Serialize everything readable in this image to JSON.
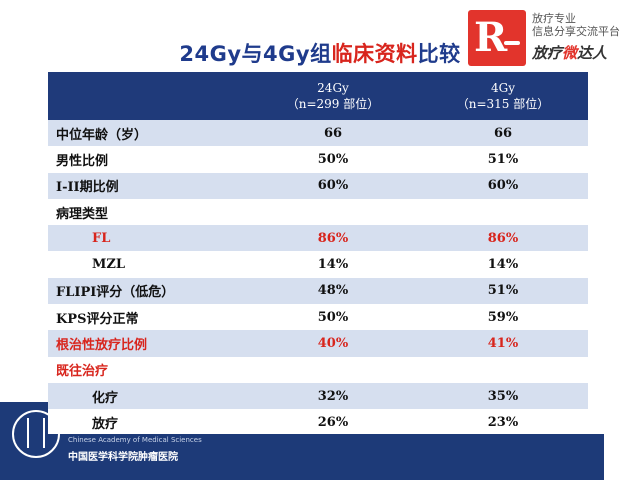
{
  "title": {
    "part1": "24Gy与4Gy组",
    "part2": "临床资料",
    "part3": "比较"
  },
  "logo": {
    "letter": "R",
    "tagline1": "放疗专业",
    "tagline2": "信息分享交流平台",
    "brand_a": "放疗",
    "brand_b": "微",
    "brand_c": "达人"
  },
  "table": {
    "header": {
      "col1": "24Gy",
      "col1_sub": "（n=299 部位）",
      "col2": "4Gy",
      "col2_sub": "（n=315 部位）"
    },
    "rows": [
      {
        "label": "中位年龄（岁）",
        "v1": "66",
        "v2": "66"
      },
      {
        "label": "男性比例",
        "v1": "50%",
        "v2": "51%"
      },
      {
        "label": "I-II期比例",
        "v1": "60%",
        "v2": "60%"
      },
      {
        "label": "病理类型",
        "v1": "",
        "v2": ""
      },
      {
        "label": "FL",
        "v1": "86%",
        "v2": "86%"
      },
      {
        "label": "MZL",
        "v1": "14%",
        "v2": "14%"
      },
      {
        "label": "FLIPI评分（低危）",
        "v1": "48%",
        "v2": "51%"
      },
      {
        "label": "KPS评分正常",
        "v1": "50%",
        "v2": "59%"
      },
      {
        "label": "根治性放疗比例",
        "v1": "40%",
        "v2": "41%"
      },
      {
        "label": "既往治疗",
        "v1": "",
        "v2": ""
      },
      {
        "label": "化疗",
        "v1": "32%",
        "v2": "35%"
      },
      {
        "label": "放疗",
        "v1": "26%",
        "v2": "23%"
      }
    ]
  },
  "footer": {
    "inst_en": "Chinese Academy of Medical Sciences",
    "inst_cn": "中国医学科学院肿瘤医院"
  },
  "colors": {
    "header": "#1f3a7a",
    "band": "#d6dfef",
    "highlight": "#d8251d"
  }
}
